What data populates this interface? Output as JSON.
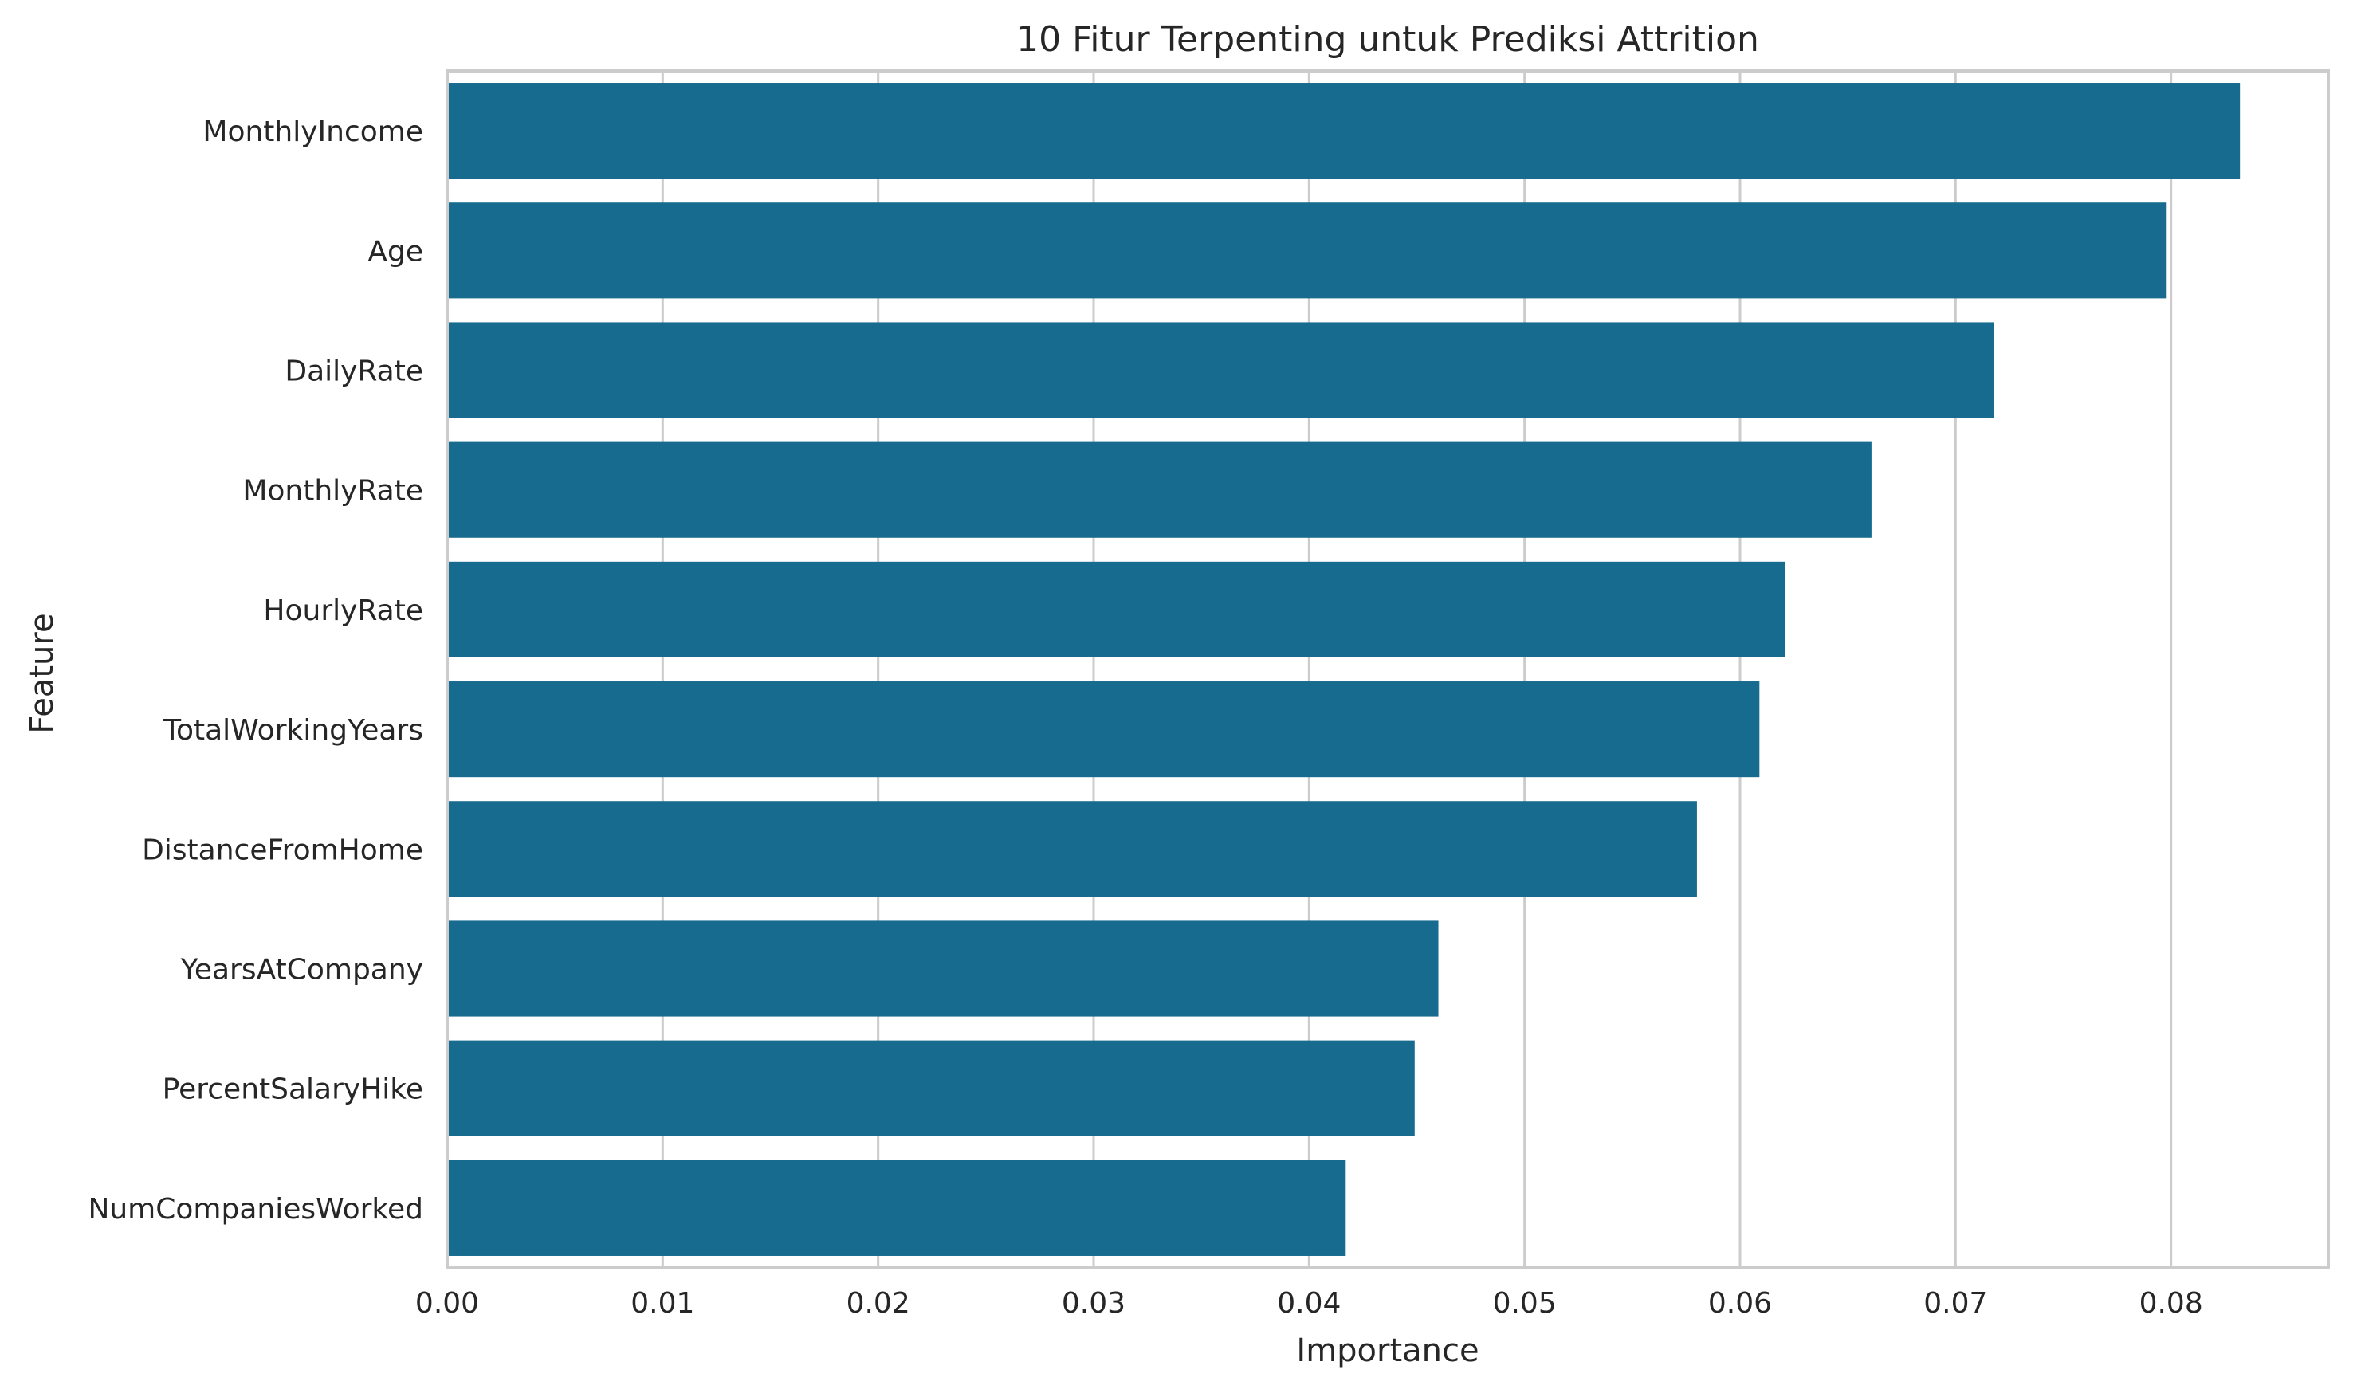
{
  "colors": {
    "bar": "#176b8e",
    "grid": "#cccccc",
    "text": "#262626",
    "background": "#ffffff"
  },
  "chart_data": {
    "type": "bar",
    "orientation": "horizontal",
    "title": "10 Fitur Terpenting untuk Prediksi Attrition",
    "xlabel": "Importance",
    "ylabel": "Feature",
    "categories": [
      "MonthlyIncome",
      "Age",
      "DailyRate",
      "MonthlyRate",
      "HourlyRate",
      "TotalWorkingYears",
      "DistanceFromHome",
      "YearsAtCompany",
      "PercentSalaryHike",
      "NumCompaniesWorked"
    ],
    "values": [
      0.0832,
      0.0798,
      0.0718,
      0.0661,
      0.0621,
      0.0609,
      0.058,
      0.046,
      0.0449,
      0.0417
    ],
    "xlim": [
      0,
      0.0873
    ],
    "xticks": [
      0.0,
      0.01,
      0.02,
      0.03,
      0.04,
      0.05,
      0.06,
      0.07,
      0.08
    ],
    "xtick_labels": [
      "0.00",
      "0.01",
      "0.02",
      "0.03",
      "0.04",
      "0.05",
      "0.06",
      "0.07",
      "0.08"
    ],
    "grid": "vertical"
  }
}
